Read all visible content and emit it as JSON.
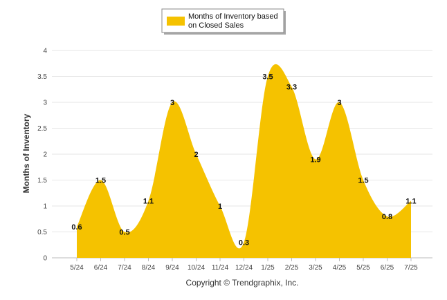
{
  "chart_data": {
    "type": "area",
    "categories": [
      "5/24",
      "6/24",
      "7/24",
      "8/24",
      "9/24",
      "10/24",
      "11/24",
      "12/24",
      "1/25",
      "2/25",
      "3/25",
      "4/25",
      "5/25",
      "6/25",
      "7/25"
    ],
    "series": [
      {
        "name": "Months of Inventory based on Closed Sales",
        "values": [
          0.6,
          1.5,
          0.5,
          1.1,
          3,
          2,
          1,
          0.3,
          3.5,
          3.3,
          1.9,
          3,
          1.5,
          0.8,
          1.1
        ],
        "labels": [
          "0.6",
          "1.5",
          "0.5",
          "1.1",
          "3",
          "2",
          "1",
          "0.3",
          "3.5",
          "3.3",
          "1.9",
          "3",
          "1.5",
          "0.8",
          "1.1"
        ],
        "color": "#f5c200"
      }
    ],
    "legend": {
      "position": "top-center",
      "lines": [
        "Months of Inventory based",
        "on Closed Sales"
      ]
    },
    "ylabel": "Months of Inventory",
    "ylim": [
      0,
      4
    ],
    "yticks": [
      "0",
      "0.5",
      "1",
      "1.5",
      "2",
      "2.5",
      "3",
      "3.5",
      "4"
    ],
    "grid": true,
    "caption": "Copyright © Trendgraphix, Inc."
  }
}
